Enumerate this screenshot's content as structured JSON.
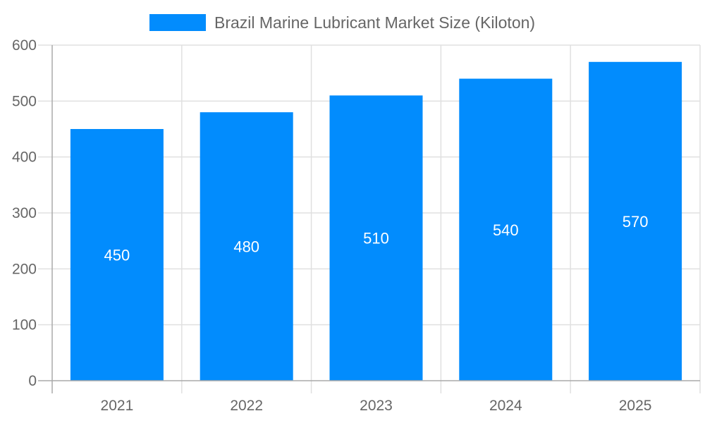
{
  "chart_data": {
    "type": "bar",
    "categories": [
      "2021",
      "2022",
      "2023",
      "2024",
      "2025"
    ],
    "series": [
      {
        "name": "Brazil Marine Lubricant Market Size (Kiloton)",
        "values": [
          450,
          480,
          510,
          540,
          570
        ]
      }
    ],
    "xlabel": "",
    "ylabel": "",
    "ylim": [
      0,
      600
    ],
    "yticks": [
      0,
      100,
      200,
      300,
      400,
      500,
      600
    ],
    "grid": true,
    "legend_position": "top",
    "data_labels": true,
    "colors": {
      "bar": "#028cfd",
      "grid": "#e0e0e0",
      "axis": "#aaaaaa",
      "text": "#666666"
    }
  }
}
